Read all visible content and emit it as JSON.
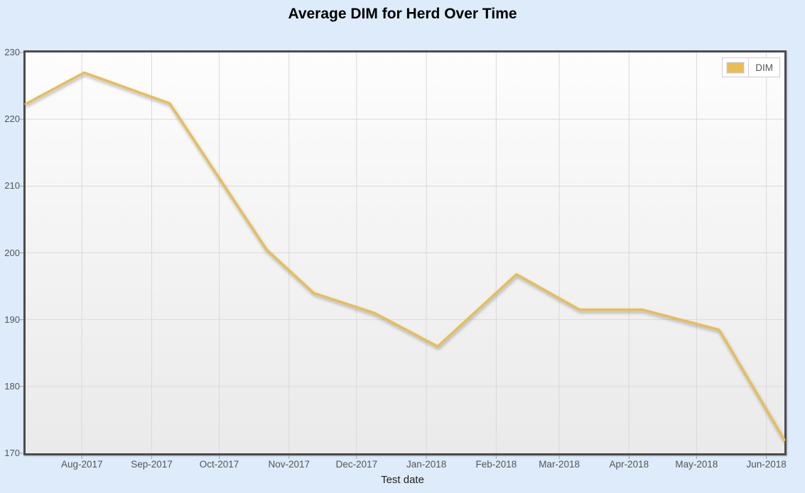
{
  "page": {
    "background_color": "#ddebfa"
  },
  "colors": {
    "accent_line": "#e9bd4e",
    "page_background": "#ddebfa",
    "plot_border": "#4c4c4c",
    "gridline": "#d9d9d9",
    "tick_text": "#555555"
  },
  "chart_data": {
    "type": "line",
    "title": "Average DIM for Herd Over Time",
    "xlabel": "Test date",
    "ylabel": "",
    "ylim": [
      170,
      230
    ],
    "y_ticks": [
      170,
      180,
      190,
      200,
      210,
      220,
      230
    ],
    "x_ticks": [
      {
        "label": "Aug-2017",
        "date": "2017-08-01"
      },
      {
        "label": "Sep-2017",
        "date": "2017-09-01"
      },
      {
        "label": "Oct-2017",
        "date": "2017-10-01"
      },
      {
        "label": "Nov-2017",
        "date": "2017-11-01"
      },
      {
        "label": "Dec-2017",
        "date": "2017-12-01"
      },
      {
        "label": "Jan-2018",
        "date": "2018-01-01"
      },
      {
        "label": "Feb-2018",
        "date": "2018-02-01"
      },
      {
        "label": "Mar-2018",
        "date": "2018-03-01"
      },
      {
        "label": "Apr-2018",
        "date": "2018-04-01"
      },
      {
        "label": "May-2018",
        "date": "2018-05-01"
      },
      {
        "label": "Jun-2018",
        "date": "2018-06-01"
      }
    ],
    "grid": true,
    "legend_position": "top-right-inside",
    "series": [
      {
        "name": "DIM",
        "color": "#e9bd4e",
        "points": [
          {
            "date": "2017-07-07",
            "value": 222.3
          },
          {
            "date": "2017-08-02",
            "value": 227.0
          },
          {
            "date": "2017-09-09",
            "value": 222.4
          },
          {
            "date": "2017-10-22",
            "value": 200.5
          },
          {
            "date": "2017-11-12",
            "value": 194.0
          },
          {
            "date": "2017-12-09",
            "value": 191.0
          },
          {
            "date": "2018-01-06",
            "value": 186.0
          },
          {
            "date": "2018-02-10",
            "value": 196.8
          },
          {
            "date": "2018-03-10",
            "value": 191.5
          },
          {
            "date": "2018-04-07",
            "value": 191.5
          },
          {
            "date": "2018-05-11",
            "value": 188.5
          },
          {
            "date": "2018-06-09",
            "value": 172.0
          }
        ]
      }
    ]
  }
}
